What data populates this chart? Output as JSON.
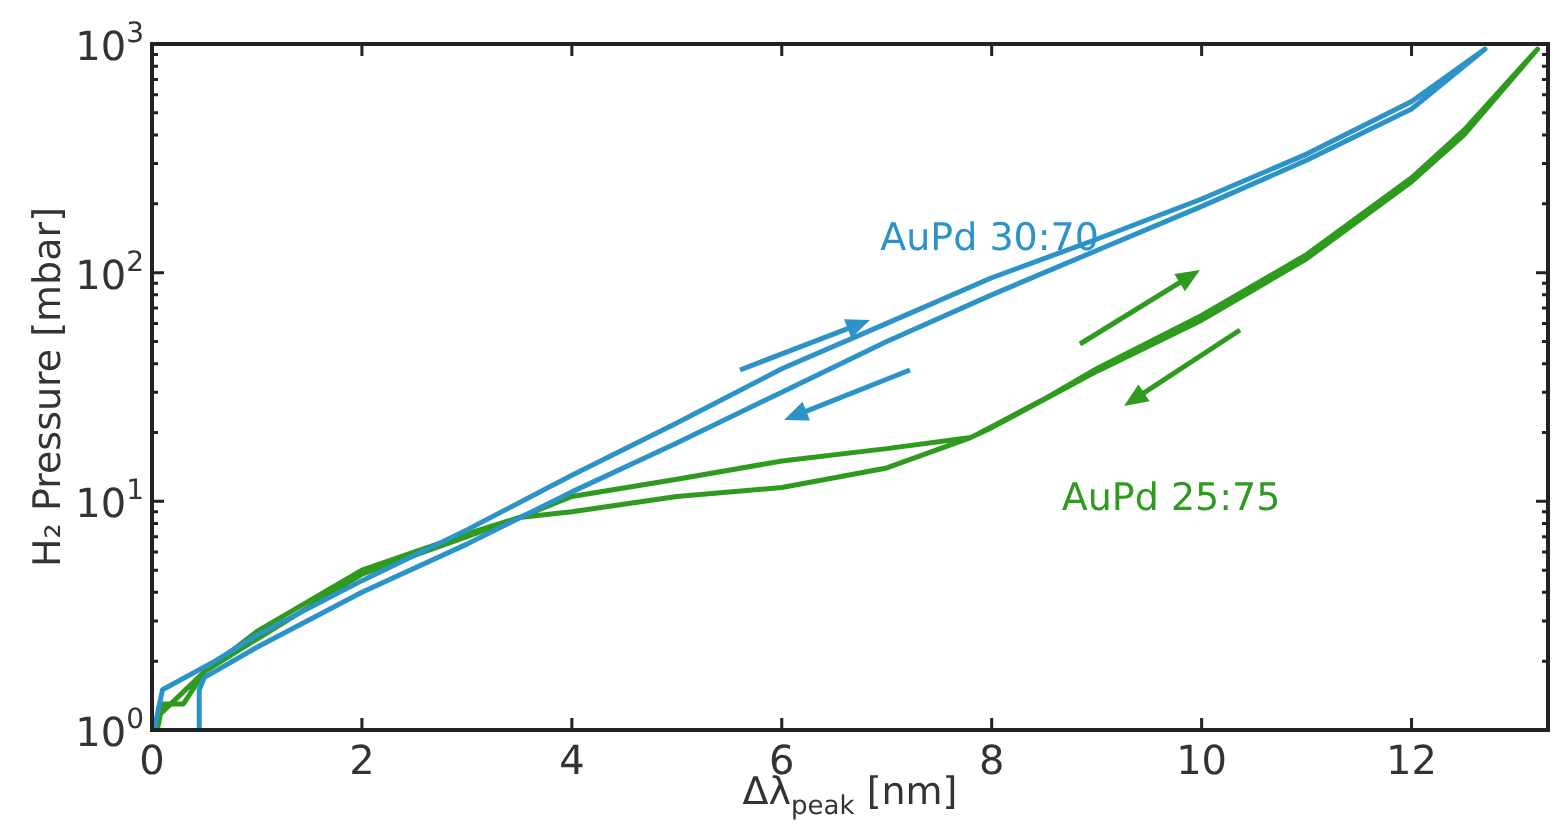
{
  "chart_data": {
    "type": "line",
    "xlabel": "Δλ$_{peak}$ [nm]",
    "ylabel": "H₂ Pressure [mbar]",
    "log": "y",
    "grid": false,
    "legend": false,
    "marker": "none",
    "line_style": "solid",
    "xlim": [
      0,
      13.3
    ],
    "xticks": [
      0,
      2,
      4,
      6,
      8,
      10,
      12
    ],
    "ylim": [
      1,
      1000
    ],
    "yticks": [
      {
        "value": 1,
        "label": "10$^{0}$"
      },
      {
        "value": 2,
        "label": null
      },
      {
        "value": 3,
        "label": null
      },
      {
        "value": 4,
        "label": null
      },
      {
        "value": 5,
        "label": null
      },
      {
        "value": 6,
        "label": null
      },
      {
        "value": 7,
        "label": null
      },
      {
        "value": 8,
        "label": null
      },
      {
        "value": 9,
        "label": null
      },
      {
        "value": 10,
        "label": "10$^{1}$"
      },
      {
        "value": 20,
        "label": null
      },
      {
        "value": 30,
        "label": null
      },
      {
        "value": 40,
        "label": null
      },
      {
        "value": 50,
        "label": null
      },
      {
        "value": 60,
        "label": null
      },
      {
        "value": 70,
        "label": null
      },
      {
        "value": 80,
        "label": null
      },
      {
        "value": 90,
        "label": null
      },
      {
        "value": 100,
        "label": "10$^{2}$"
      },
      {
        "value": 200,
        "label": null
      },
      {
        "value": 300,
        "label": null
      },
      {
        "value": 400,
        "label": null
      },
      {
        "value": 500,
        "label": null
      },
      {
        "value": 600,
        "label": null
      },
      {
        "value": 700,
        "label": null
      },
      {
        "value": 800,
        "label": null
      },
      {
        "value": 900,
        "label": null
      },
      {
        "value": 1000,
        "label": "10$^{3}$"
      }
    ],
    "series": [
      {
        "name": "AuPd 30:70",
        "color": "#2b93c8",
        "x": [
          0.02,
          0.1,
          0.6,
          1,
          2,
          3,
          4,
          5,
          6,
          7,
          8,
          9,
          10,
          11,
          12,
          12.7,
          12,
          11,
          10,
          9,
          8,
          7,
          6,
          5,
          4,
          3,
          2,
          1,
          0.5,
          0.45,
          0.45
        ],
        "values": [
          1,
          1.5,
          2,
          2.6,
          4.5,
          7.5,
          13,
          22,
          38,
          60,
          95,
          140,
          210,
          330,
          560,
          950,
          520,
          310,
          195,
          125,
          80,
          50,
          30,
          18,
          11,
          6.5,
          4,
          2.3,
          1.7,
          1.5,
          1
        ]
      },
      {
        "name": "AuPd 25:75",
        "color": "#2e9a1e",
        "x": [
          0.05,
          0.1,
          0.3,
          0.5,
          1,
          2,
          3,
          3.5,
          4,
          5,
          6,
          7,
          7.8,
          8.5,
          9,
          10,
          11,
          12,
          12.5,
          13.2,
          12.5,
          12,
          11,
          10,
          9,
          8,
          7.8,
          7,
          6,
          5,
          4,
          3.5,
          3,
          2,
          1,
          0.5,
          0.1
        ],
        "values": [
          1,
          1.3,
          1.3,
          1.8,
          2.5,
          4.8,
          7,
          8.5,
          10.5,
          12.5,
          15,
          17,
          19,
          28,
          38,
          65,
          120,
          260,
          420,
          950,
          400,
          250,
          115,
          62,
          37,
          21,
          19,
          14,
          11.5,
          10.5,
          9,
          8.5,
          7.2,
          5,
          2.7,
          1.8,
          1.2
        ]
      }
    ]
  }
}
